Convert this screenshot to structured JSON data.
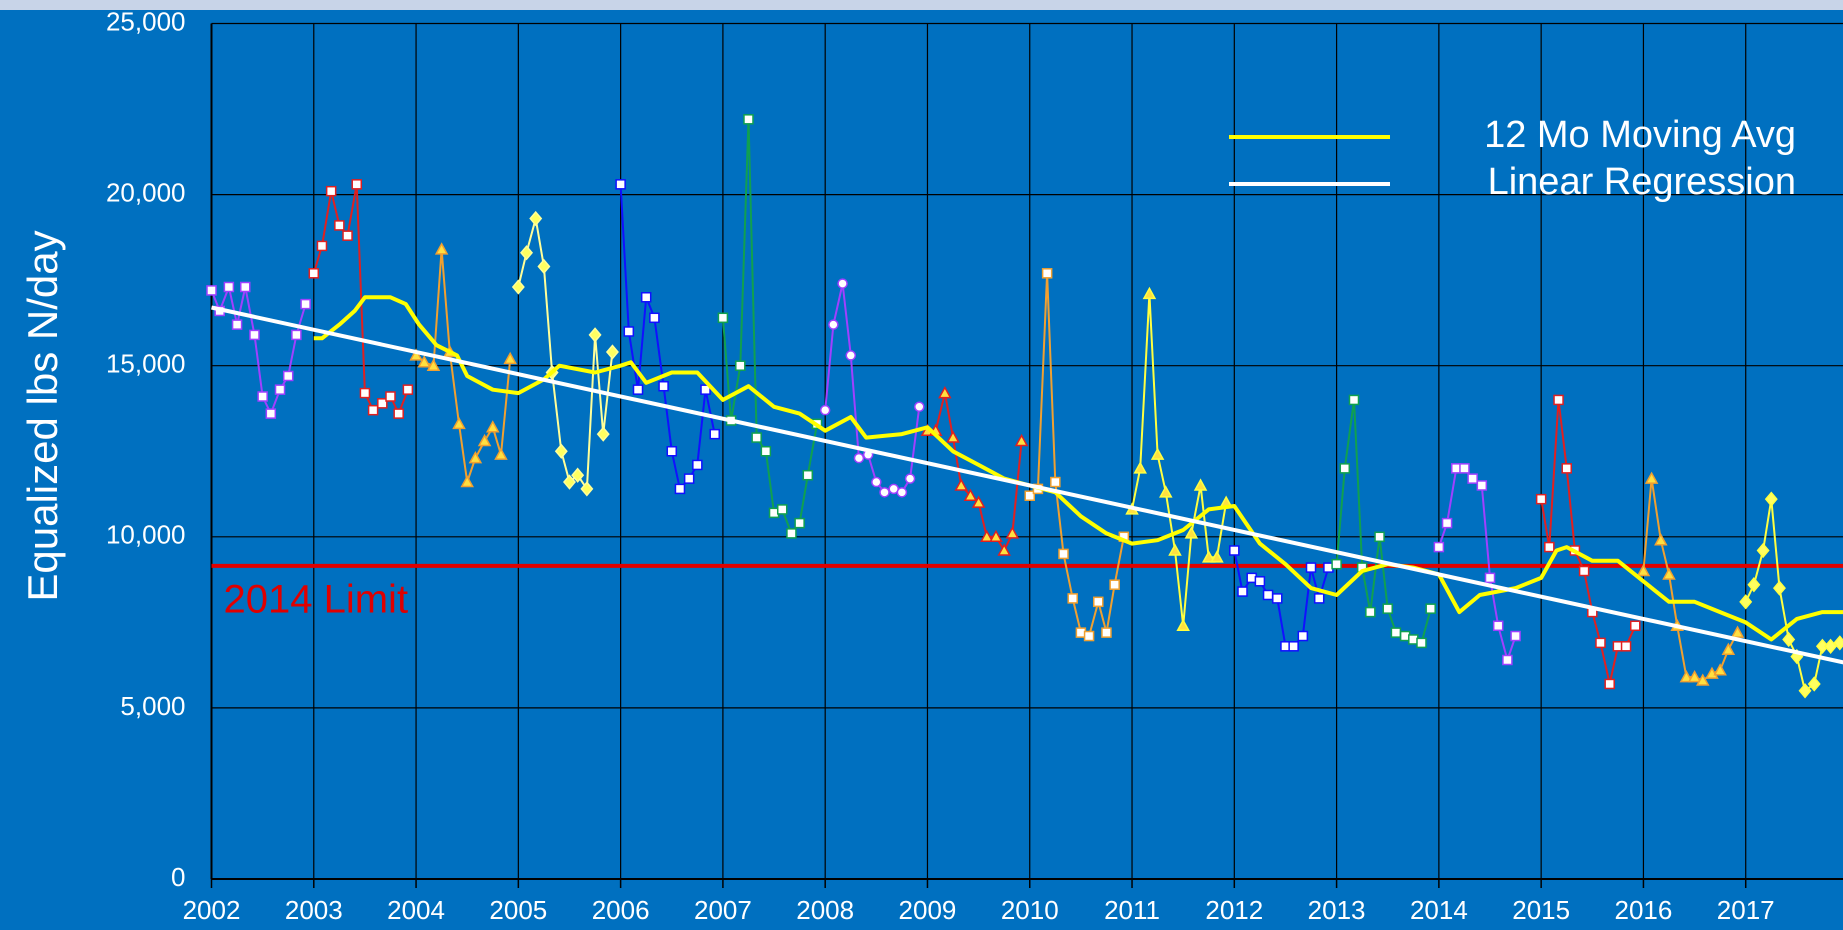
{
  "chart_data": {
    "type": "line",
    "y_label": "Equalized lbs N/day",
    "xlim": [
      2002,
      2018
    ],
    "ylim": [
      0,
      25000
    ],
    "xticks": [
      2002,
      2003,
      2004,
      2005,
      2006,
      2007,
      2008,
      2009,
      2010,
      2011,
      2012,
      2013,
      2014,
      2015,
      2016,
      2017
    ],
    "yticks": [
      0,
      {
        "value": 5000,
        "label": "5,000"
      },
      {
        "value": 10000,
        "label": "10,000"
      },
      {
        "value": 15000,
        "label": "15,000"
      },
      {
        "value": 20000,
        "label": "20,000"
      },
      {
        "value": 25000,
        "label": "25,000"
      }
    ],
    "grid": true,
    "reference_line": {
      "label": "2014 Limit",
      "value": 9150,
      "color": "#e00000"
    },
    "series": [
      {
        "color": "#a040ff",
        "marker": "square",
        "x": [
          2002,
          2002.08,
          2002.17,
          2002.25,
          2002.33,
          2002.42,
          2002.5,
          2002.58,
          2002.67,
          2002.75,
          2002.83,
          2002.92
        ],
        "values": [
          17200,
          16600,
          17300,
          16200,
          17300,
          15900,
          14100,
          13600,
          14300,
          14700,
          15900,
          16800
        ]
      },
      {
        "color": "#e02020",
        "marker": "square",
        "x": [
          2003,
          2003.08,
          2003.17,
          2003.25,
          2003.33,
          2003.42,
          2003.5,
          2003.58,
          2003.67,
          2003.75,
          2003.83,
          2003.92
        ],
        "values": [
          17700,
          18500,
          20100,
          19100,
          18800,
          20300,
          14200,
          13700,
          13900,
          14100,
          13600,
          14300
        ]
      },
      {
        "color": "#f0a030",
        "marker": "triangle",
        "x": [
          2004,
          2004.08,
          2004.17,
          2004.25,
          2004.33,
          2004.42,
          2004.5,
          2004.58,
          2004.67,
          2004.75,
          2004.83,
          2004.92
        ],
        "values": [
          15300,
          15100,
          15000,
          18400,
          15400,
          13300,
          11600,
          12300,
          12800,
          13200,
          12400,
          15200
        ]
      },
      {
        "color": "#ffff99",
        "marker": "diamond",
        "x": [
          2005,
          2005.08,
          2005.17,
          2005.25,
          2005.33,
          2005.42,
          2005.5,
          2005.58,
          2005.67,
          2005.75,
          2005.83,
          2005.92
        ],
        "values": [
          17300,
          18300,
          19300,
          17900,
          14800,
          12500,
          11600,
          11800,
          11400,
          15900,
          13000,
          15400
        ]
      },
      {
        "color": "#1010ff",
        "marker": "square",
        "x": [
          2006,
          2006.08,
          2006.17,
          2006.25,
          2006.33,
          2006.42,
          2006.5,
          2006.58,
          2006.67,
          2006.75,
          2006.83,
          2006.92
        ],
        "values": [
          20300,
          16000,
          14300,
          17000,
          16400,
          14400,
          12500,
          11400,
          11700,
          12100,
          14300,
          13000
        ]
      },
      {
        "color": "#10a050",
        "marker": "square",
        "x": [
          2007,
          2007.08,
          2007.17,
          2007.25,
          2007.33,
          2007.42,
          2007.5,
          2007.58,
          2007.67,
          2007.75,
          2007.83,
          2007.92
        ],
        "values": [
          16400,
          13400,
          15000,
          22200,
          12900,
          12500,
          10700,
          10800,
          10100,
          10400,
          11800,
          13300
        ]
      },
      {
        "color": "#a040ff",
        "marker": "circle",
        "x": [
          2008,
          2008.08,
          2008.17,
          2008.25,
          2008.33,
          2008.42,
          2008.5,
          2008.58,
          2008.67,
          2008.75,
          2008.83,
          2008.92
        ],
        "values": [
          13700,
          16200,
          17400,
          15300,
          12300,
          12400,
          11600,
          11300,
          11400,
          11300,
          11700,
          13800
        ]
      },
      {
        "color": "#e02020",
        "marker": "triangle",
        "x": [
          2009,
          2009.08,
          2009.17,
          2009.25,
          2009.33,
          2009.42,
          2009.5,
          2009.58,
          2009.67,
          2009.75,
          2009.83,
          2009.92
        ],
        "values": [
          13100,
          13100,
          14200,
          12900,
          11500,
          11200,
          11000,
          10000,
          10000,
          9600,
          10100,
          12800
        ]
      },
      {
        "color": "#f0a030",
        "marker": "square",
        "x": [
          2010,
          2010.08,
          2010.17,
          2010.25,
          2010.33,
          2010.42,
          2010.5,
          2010.58,
          2010.67,
          2010.75,
          2010.83,
          2010.92
        ],
        "values": [
          11200,
          11400,
          17700,
          11600,
          9500,
          8200,
          7200,
          7100,
          8100,
          7200,
          8600,
          10000
        ]
      },
      {
        "color": "#ffff40",
        "marker": "triangle",
        "x": [
          2011,
          2011.08,
          2011.17,
          2011.25,
          2011.33,
          2011.42,
          2011.5,
          2011.58,
          2011.67,
          2011.75,
          2011.83,
          2011.92
        ],
        "values": [
          10800,
          12000,
          17100,
          12400,
          11300,
          9600,
          7400,
          10100,
          11500,
          9400,
          9400,
          11000
        ]
      },
      {
        "color": "#1010ff",
        "marker": "square",
        "x": [
          2012,
          2012.08,
          2012.17,
          2012.25,
          2012.33,
          2012.42,
          2012.5,
          2012.58,
          2012.67,
          2012.75,
          2012.83,
          2012.92
        ],
        "values": [
          9600,
          8400,
          8800,
          8700,
          8300,
          8200,
          6800,
          6800,
          7100,
          9100,
          8200,
          9100
        ]
      },
      {
        "color": "#10a050",
        "marker": "square",
        "x": [
          2013,
          2013.08,
          2013.17,
          2013.25,
          2013.33,
          2013.42,
          2013.5,
          2013.58,
          2013.67,
          2013.75,
          2013.83,
          2013.92
        ],
        "values": [
          9200,
          12000,
          14000,
          9100,
          7800,
          10000,
          7900,
          7200,
          7100,
          7000,
          6900,
          7900
        ]
      },
      {
        "color": "#a040ff",
        "marker": "square",
        "x": [
          2014,
          2014.08,
          2014.17,
          2014.25,
          2014.33,
          2014.42,
          2014.5,
          2014.58,
          2014.67,
          2014.75
        ],
        "values": [
          9700,
          10400,
          12000,
          12000,
          11700,
          11500,
          8800,
          7400,
          6400,
          7100
        ]
      },
      {
        "color": "#e02020",
        "marker": "square",
        "x": [
          2015,
          2015.08,
          2015.17,
          2015.25,
          2015.33,
          2015.42,
          2015.5,
          2015.58,
          2015.67,
          2015.75,
          2015.83,
          2015.92
        ],
        "values": [
          11100,
          9700,
          14000,
          12000,
          9600,
          9000,
          7800,
          6900,
          5700,
          6800,
          6800,
          7400
        ]
      },
      {
        "color": "#f0a030",
        "marker": "triangle",
        "x": [
          2016,
          2016.08,
          2016.17,
          2016.25,
          2016.33,
          2016.42,
          2016.5,
          2016.58,
          2016.67,
          2016.75,
          2016.83,
          2016.92
        ],
        "values": [
          9000,
          11700,
          9900,
          8900,
          7400,
          5900,
          5900,
          5800,
          6000,
          6100,
          6700,
          7200
        ]
      },
      {
        "color": "#ffff40",
        "marker": "diamond",
        "x": [
          2017,
          2017.08,
          2017.17,
          2017.25,
          2017.33,
          2017.42,
          2017.5,
          2017.58,
          2017.67,
          2017.75,
          2017.83,
          2017.92
        ],
        "values": [
          8100,
          8600,
          9600,
          11100,
          8500,
          7000,
          6500,
          5500,
          5700,
          6800,
          6800,
          6900
        ]
      },
      {
        "name": "12 Mo Moving Avg",
        "color": "#ffff00",
        "width": 4,
        "x": [
          2003,
          2003.08,
          2003.25,
          2003.4,
          2003.5,
          2003.75,
          2003.9,
          2004.03,
          2004.2,
          2004.4,
          2004.5,
          2004.75,
          2005,
          2005.25,
          2005.4,
          2005.75,
          2006,
          2006.1,
          2006.25,
          2006.5,
          2006.75,
          2007,
          2007.25,
          2007.5,
          2007.75,
          2008,
          2008.25,
          2008.4,
          2008.75,
          2009,
          2009.25,
          2009.5,
          2009.75,
          2010,
          2010.25,
          2010.5,
          2010.75,
          2011,
          2011.25,
          2011.5,
          2011.75,
          2012,
          2012.25,
          2012.5,
          2012.75,
          2013,
          2013.25,
          2013.5,
          2013.75,
          2014,
          2014.2,
          2014.4,
          2014.75,
          2015,
          2015.15,
          2015.25,
          2015.5,
          2015.75,
          2016,
          2016.25,
          2016.5,
          2016.75,
          2017,
          2017.25,
          2017.5,
          2017.75,
          2018
        ],
        "values": [
          15800,
          15800,
          16200,
          16600,
          17000,
          17000,
          16800,
          16200,
          15600,
          15300,
          14700,
          14300,
          14200,
          14600,
          15000,
          14800,
          15000,
          15100,
          14500,
          14800,
          14800,
          14000,
          14400,
          13800,
          13600,
          13100,
          13500,
          12900,
          13000,
          13200,
          12500,
          12100,
          11700,
          11500,
          11300,
          10600,
          10100,
          9800,
          9900,
          10200,
          10800,
          10900,
          9800,
          9200,
          8500,
          8300,
          9000,
          9200,
          9100,
          8900,
          7800,
          8300,
          8500,
          8800,
          9600,
          9700,
          9300,
          9300,
          8700,
          8100,
          8100,
          7800,
          7500,
          7000,
          7600,
          7800,
          7800
        ]
      },
      {
        "name": "Linear Regression",
        "color": "#ffffff",
        "width": 4,
        "x": [
          2002,
          2018
        ],
        "values": [
          16700,
          6300
        ]
      }
    ]
  }
}
